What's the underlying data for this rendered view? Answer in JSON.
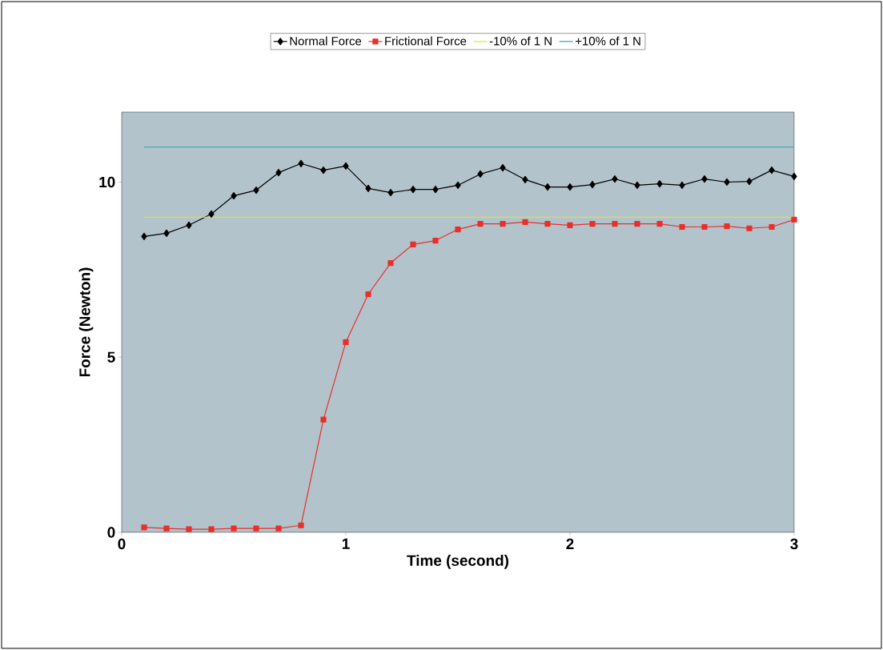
{
  "chart_data": {
    "type": "line",
    "xlabel": "Time (second)",
    "ylabel": "Force (Newton)",
    "xlim": [
      0,
      3
    ],
    "ylim": [
      0,
      12
    ],
    "xticks": [
      0,
      1,
      2,
      3
    ],
    "yticks": [
      0,
      5,
      10
    ],
    "grid": false,
    "legend": "top",
    "series": [
      {
        "name": "Normal Force",
        "color": "#000000",
        "marker": "diamond",
        "x": [
          0.1,
          0.2,
          0.3,
          0.4,
          0.5,
          0.6,
          0.7,
          0.8,
          0.9,
          1.0,
          1.1,
          1.2,
          1.3,
          1.4,
          1.5,
          1.6,
          1.7,
          1.8,
          1.9,
          2.0,
          2.1,
          2.2,
          2.3,
          2.4,
          2.5,
          2.6,
          2.7,
          2.8,
          2.9,
          3.0
        ],
        "values": [
          8.45,
          8.54,
          8.77,
          9.09,
          9.61,
          9.77,
          10.27,
          10.53,
          10.34,
          10.46,
          9.82,
          9.7,
          9.79,
          9.79,
          9.91,
          10.23,
          10.41,
          10.07,
          9.86,
          9.86,
          9.93,
          10.09,
          9.91,
          9.95,
          9.91,
          10.09,
          10.0,
          10.02,
          10.34,
          10.16
        ]
      },
      {
        "name": "Frictional Force",
        "color": "#e8302a",
        "marker": "square",
        "x": [
          0.1,
          0.2,
          0.3,
          0.4,
          0.5,
          0.6,
          0.7,
          0.8,
          0.9,
          1.0,
          1.1,
          1.2,
          1.3,
          1.4,
          1.5,
          1.6,
          1.7,
          1.8,
          1.9,
          2.0,
          2.1,
          2.2,
          2.3,
          2.4,
          2.5,
          2.6,
          2.7,
          2.8,
          2.9,
          3.0
        ],
        "values": [
          0.14,
          0.11,
          0.09,
          0.09,
          0.11,
          0.11,
          0.11,
          0.2,
          3.22,
          5.43,
          6.8,
          7.69,
          8.22,
          8.33,
          8.65,
          8.81,
          8.81,
          8.86,
          8.81,
          8.77,
          8.81,
          8.81,
          8.81,
          8.81,
          8.72,
          8.72,
          8.74,
          8.68,
          8.72,
          8.93
        ]
      },
      {
        "name": "-10% of 1 N",
        "color": "#e8e820",
        "marker": "none",
        "x": [
          0.1,
          3.0
        ],
        "values": [
          9,
          9
        ]
      },
      {
        "name": "+10% of 1 N",
        "color": "#2aa8a8",
        "marker": "none",
        "x": [
          0.1,
          3.0
        ],
        "values": [
          11,
          11
        ]
      }
    ]
  }
}
